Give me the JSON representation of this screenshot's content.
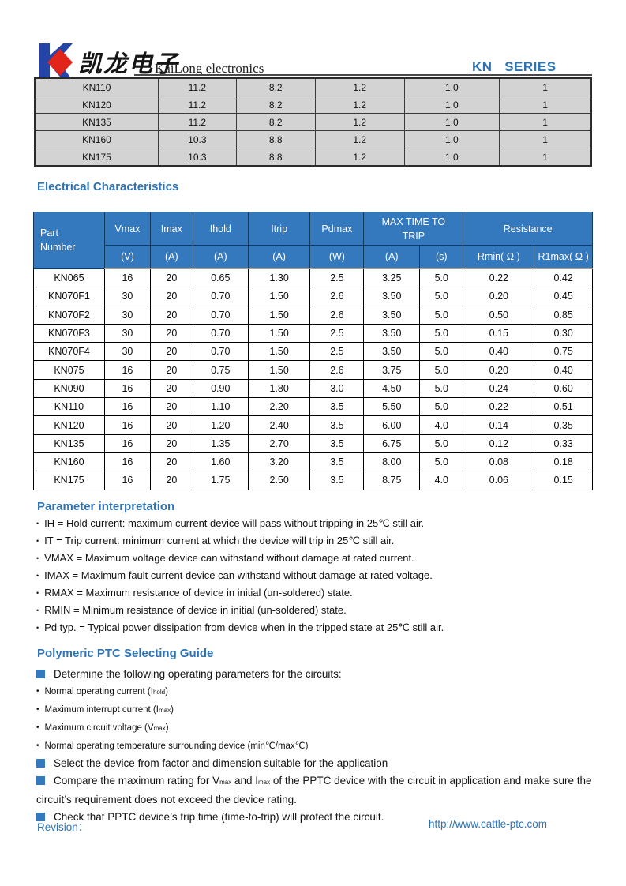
{
  "brand": {
    "logo_cn": "凯龙电子",
    "logo_en": "KaiLong electronics",
    "series_label": "KN   SERIES"
  },
  "colors": {
    "accent_blue": "#2e74b5",
    "table_header_blue": "#3478bd",
    "row_gray": "#d3d3d3",
    "logo_blue": "#2444a8",
    "logo_red": "#e1251b"
  },
  "top_table": {
    "rows": [
      [
        "KN110",
        "11.2",
        "8.2",
        "1.2",
        "1.0",
        "1"
      ],
      [
        "KN120",
        "11.2",
        "8.2",
        "1.2",
        "1.0",
        "1"
      ],
      [
        "KN135",
        "11.2",
        "8.2",
        "1.2",
        "1.0",
        "1"
      ],
      [
        "KN160",
        "10.3",
        "8.8",
        "1.2",
        "1.0",
        "1"
      ],
      [
        "KN175",
        "10.3",
        "8.8",
        "1.2",
        "1.0",
        "1"
      ]
    ]
  },
  "electrical": {
    "title": "Electrical Characteristics",
    "header": {
      "part_line1": "Part",
      "part_line2": "Number",
      "vmax": "Vmax",
      "imax": "Imax",
      "ihold": "Ihold",
      "itrip": "Itrip",
      "pdmax": "Pdmax",
      "max_time_line1": "MAX TIME TO",
      "max_time_line2": "TRIP",
      "resistance": "Resistance"
    },
    "units": [
      "(V)",
      "(A)",
      "(A)",
      "(A)",
      "(W)",
      "(A)",
      "(s)",
      "Rmin( Ω )",
      "R1max( Ω )"
    ],
    "rows": [
      [
        "KN065",
        "16",
        "20",
        "0.65",
        "1.30",
        "2.5",
        "3.25",
        "5.0",
        "0.22",
        "0.42"
      ],
      [
        "KN070F1",
        "30",
        "20",
        "0.70",
        "1.50",
        "2.6",
        "3.50",
        "5.0",
        "0.20",
        "0.45"
      ],
      [
        "KN070F2",
        "30",
        "20",
        "0.70",
        "1.50",
        "2.6",
        "3.50",
        "5.0",
        "0.50",
        "0.85"
      ],
      [
        "KN070F3",
        "30",
        "20",
        "0.70",
        "1.50",
        "2.5",
        "3.50",
        "5.0",
        "0.15",
        "0.30"
      ],
      [
        "KN070F4",
        "30",
        "20",
        "0.70",
        "1.50",
        "2.5",
        "3.50",
        "5.0",
        "0.40",
        "0.75"
      ],
      [
        "KN075",
        "16",
        "20",
        "0.75",
        "1.50",
        "2.6",
        "3.75",
        "5.0",
        "0.20",
        "0.40"
      ],
      [
        "KN090",
        "16",
        "20",
        "0.90",
        "1.80",
        "3.0",
        "4.50",
        "5.0",
        "0.24",
        "0.60"
      ],
      [
        "KN110",
        "16",
        "20",
        "1.10",
        "2.20",
        "3.5",
        "5.50",
        "5.0",
        "0.22",
        "0.51"
      ],
      [
        "KN120",
        "16",
        "20",
        "1.20",
        "2.40",
        "3.5",
        "6.00",
        "4.0",
        "0.14",
        "0.35"
      ],
      [
        "KN135",
        "16",
        "20",
        "1.35",
        "2.70",
        "3.5",
        "6.75",
        "5.0",
        "0.12",
        "0.33"
      ],
      [
        "KN160",
        "16",
        "20",
        "1.60",
        "3.20",
        "3.5",
        "8.00",
        "5.0",
        "0.08",
        "0.18"
      ],
      [
        "KN175",
        "16",
        "20",
        "1.75",
        "2.50",
        "3.5",
        "8.75",
        "4.0",
        "0.06",
        "0.15"
      ]
    ]
  },
  "parameter_interpretation": {
    "title": "Parameter interpretation",
    "bullets": [
      "IH = Hold current: maximum current device will pass without tripping in 25℃  still air.",
      "IT = Trip current: minimum current at which the device will trip in 25℃  still air.",
      "VMAX = Maximum voltage device can withstand without damage at rated current.",
      "IMAX = Maximum fault current device can withstand without damage at rated voltage.",
      "RMAX = Maximum resistance of device in initial (un-soldered) state.",
      "RMIN = Minimum resistance of device in initial (un-soldered) state.",
      "Pd typ. = Typical power dissipation from device when in the tripped state at 25℃  still air."
    ]
  },
  "selecting_guide": {
    "title": "Polymeric PTC Selecting Guide",
    "items": [
      {
        "type": "square",
        "parts": [
          {
            "t": "Determine the following operating parameters for the circuits:"
          }
        ]
      },
      {
        "type": "dot",
        "parts": [
          {
            "t": "Normal operating current (I"
          },
          {
            "t": "hold",
            "sub": true
          },
          {
            "t": ")"
          }
        ]
      },
      {
        "type": "dot",
        "parts": [
          {
            "t": "Maximum interrupt current (I"
          },
          {
            "t": "max",
            "sub": true
          },
          {
            "t": ")"
          }
        ]
      },
      {
        "type": "dot",
        "parts": [
          {
            "t": "Maximum circuit voltage (V"
          },
          {
            "t": "max",
            "sub": true
          },
          {
            "t": ")"
          }
        ]
      },
      {
        "type": "dot",
        "parts": [
          {
            "t": "Normal operating temperature surrounding device (min℃/max℃)"
          }
        ]
      },
      {
        "type": "square",
        "parts": [
          {
            "t": "Select the device from factor and dimension suitable for the application"
          }
        ]
      },
      {
        "type": "square",
        "parts": [
          {
            "t": "Compare the maximum rating for V"
          },
          {
            "t": "max",
            "sub": true
          },
          {
            "t": " and I"
          },
          {
            "t": "max",
            "sub": true
          },
          {
            "t": " of the PPTC device with the circuit in application and make sure the circuit’s requirement does not exceed the device rating."
          }
        ]
      },
      {
        "type": "square",
        "parts": [
          {
            "t": "Check that PPTC device’s trip time (time-to-trip) will protect the circuit."
          }
        ]
      }
    ]
  },
  "footer": {
    "revision_label": "Revision：",
    "url": "http://www.cattle-ptc.com"
  }
}
